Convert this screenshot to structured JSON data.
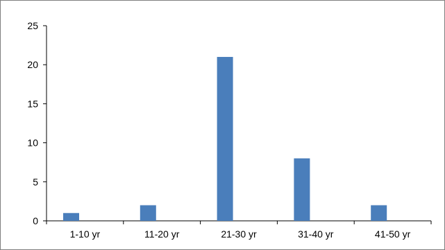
{
  "chart_data": {
    "type": "bar",
    "categories": [
      "1-10 yr",
      "11-20 yr",
      "21-30 yr",
      "31-40 yr",
      "41-50 yr"
    ],
    "values": [
      1,
      2,
      21,
      8,
      2
    ],
    "title": "",
    "xlabel": "",
    "ylabel": "",
    "ylim": [
      0,
      25
    ],
    "yticks": [
      0,
      5,
      10,
      15,
      20,
      25
    ],
    "grid": false,
    "legend": "none",
    "bar_color": "#4a7ebb"
  }
}
